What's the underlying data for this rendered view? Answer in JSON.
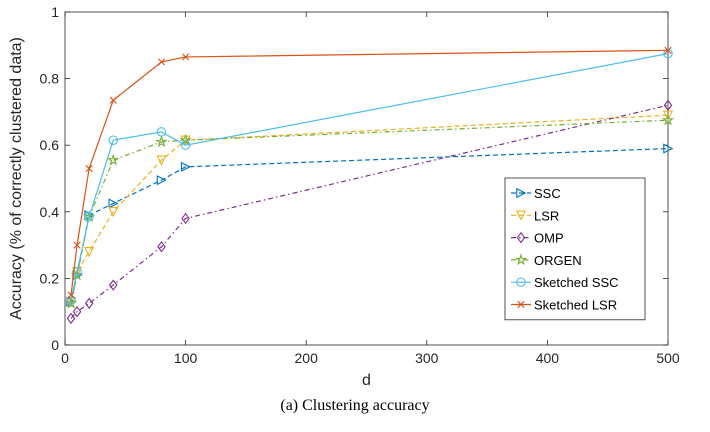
{
  "caption": "(a) Clustering accuracy",
  "chart_data": {
    "type": "line",
    "title": "",
    "xlabel": "d",
    "ylabel": "Accuracy (% of correctly clustered data)",
    "xlim": [
      0,
      500
    ],
    "ylim": [
      0,
      1
    ],
    "xticks": [
      0,
      100,
      200,
      300,
      400,
      500
    ],
    "yticks": [
      0,
      0.2,
      0.4,
      0.6,
      0.8,
      1
    ],
    "xtick_labels": [
      "0",
      "100",
      "200",
      "300",
      "400",
      "500"
    ],
    "ytick_labels": [
      "0",
      "0.2",
      "0.4",
      "0.6",
      "0.8",
      "1"
    ],
    "grid": false,
    "legend_position": "lower-right",
    "x": [
      5,
      10,
      20,
      40,
      80,
      100,
      500
    ],
    "series": [
      {
        "name": "SSC",
        "color": "#0072BD",
        "dash": "5,3",
        "marker": "triangle-right",
        "values": [
          0.13,
          0.21,
          0.39,
          0.425,
          0.495,
          0.535,
          0.59
        ]
      },
      {
        "name": "LSR",
        "color": "#EDB120",
        "dash": "5,3",
        "marker": "triangle-down",
        "values": [
          0.13,
          0.22,
          0.28,
          0.4,
          0.555,
          0.615,
          0.69
        ]
      },
      {
        "name": "OMP",
        "color": "#7E2F8E",
        "dash": "5,3,1.5,3",
        "marker": "diamond",
        "values": [
          0.08,
          0.1,
          0.125,
          0.18,
          0.295,
          0.38,
          0.72
        ]
      },
      {
        "name": "ORGEN",
        "color": "#77AC30",
        "dash": "5,3,1.5,3",
        "marker": "star",
        "values": [
          0.125,
          0.21,
          0.385,
          0.555,
          0.61,
          0.615,
          0.675
        ]
      },
      {
        "name": "Sketched SSC",
        "color": "#4DBEEE",
        "dash": "",
        "marker": "circle",
        "values": [
          0.135,
          0.22,
          0.385,
          0.615,
          0.64,
          0.6,
          0.875
        ]
      },
      {
        "name": "Sketched LSR",
        "color": "#D95319",
        "dash": "",
        "marker": "x",
        "values": [
          0.15,
          0.3,
          0.53,
          0.735,
          0.85,
          0.865,
          0.885
        ]
      }
    ]
  }
}
